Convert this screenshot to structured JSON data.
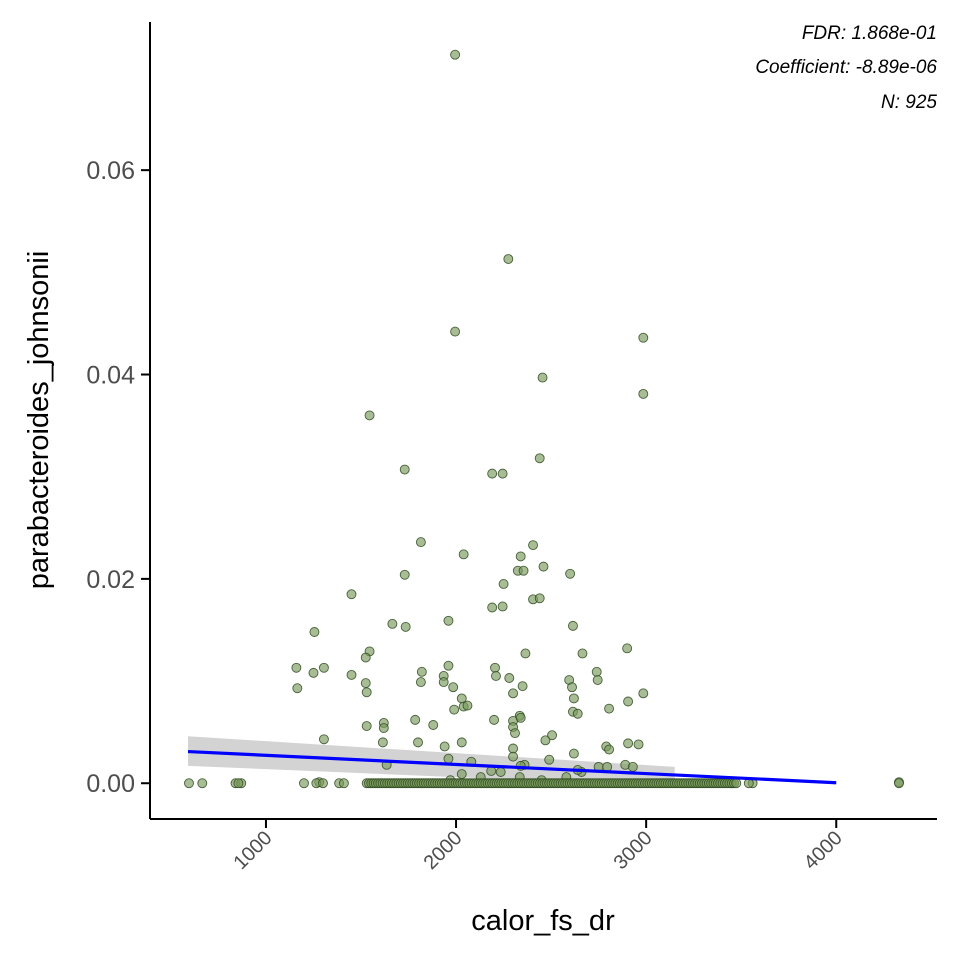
{
  "chart_data": {
    "type": "scatter",
    "title": "",
    "xlabel": "calor_fs_dr",
    "ylabel": "parabacteroides_johnsonii",
    "xlim": [
      390,
      4530
    ],
    "ylim": [
      -0.0035,
      0.0745
    ],
    "x_ticks": [
      1000,
      2000,
      3000,
      4000
    ],
    "x_tick_labels": [
      "1000",
      "2000",
      "3000",
      "4000"
    ],
    "y_ticks": [
      0.0,
      0.02,
      0.04,
      0.06
    ],
    "y_tick_labels": [
      "0.00",
      "0.02",
      "0.04",
      "0.06"
    ],
    "grid": false,
    "annotations": [
      "FDR: 1.868e-01",
      "Coefficient: -8.89e-06",
      "N: 925"
    ],
    "colors": {
      "point_fill": "#7a9a5c",
      "point_stroke": "#2e4a1e",
      "fit_line": "#0000ff",
      "confidence_band": "#c8c8c8",
      "axis": "#000000"
    },
    "fit_line": {
      "x": [
        590,
        4000
      ],
      "y": [
        0.0031,
        5e-05
      ]
    },
    "confidence_band": {
      "x": [
        590,
        3150
      ],
      "upper": [
        0.0046,
        0.0016
      ],
      "lower": [
        0.0017,
        -0.0003
      ]
    },
    "points": [
      [
        1995,
        0.0713
      ],
      [
        2275,
        0.0513
      ],
      [
        1995,
        0.0442
      ],
      [
        2985,
        0.0436
      ],
      [
        2455,
        0.0397
      ],
      [
        2985,
        0.0381
      ],
      [
        1545,
        0.036
      ],
      [
        1730,
        0.0307
      ],
      [
        2190,
        0.0303
      ],
      [
        2245,
        0.0303
      ],
      [
        2440,
        0.0318
      ],
      [
        1815,
        0.0236
      ],
      [
        2040,
        0.0224
      ],
      [
        2405,
        0.0233
      ],
      [
        2340,
        0.0222
      ],
      [
        2460,
        0.0212
      ],
      [
        2325,
        0.0208
      ],
      [
        2355,
        0.0208
      ],
      [
        2600,
        0.0205
      ],
      [
        1730,
        0.0204
      ],
      [
        2250,
        0.0195
      ],
      [
        1450,
        0.0185
      ],
      [
        2405,
        0.018
      ],
      [
        2440,
        0.0181
      ],
      [
        2190,
        0.0172
      ],
      [
        2245,
        0.0173
      ],
      [
        1960,
        0.0159
      ],
      [
        1665,
        0.0156
      ],
      [
        1735,
        0.0153
      ],
      [
        2615,
        0.0154
      ],
      [
        1255,
        0.0148
      ],
      [
        2900,
        0.0132
      ],
      [
        1545,
        0.0129
      ],
      [
        2365,
        0.0127
      ],
      [
        2665,
        0.0127
      ],
      [
        1525,
        0.0123
      ],
      [
        1160,
        0.0113
      ],
      [
        1305,
        0.0113
      ],
      [
        1960,
        0.0115
      ],
      [
        2205,
        0.0113
      ],
      [
        2740,
        0.0109
      ],
      [
        1820,
        0.0109
      ],
      [
        1250,
        0.0108
      ],
      [
        1450,
        0.0106
      ],
      [
        1935,
        0.0105
      ],
      [
        2210,
        0.0105
      ],
      [
        2280,
        0.0103
      ],
      [
        2595,
        0.0101
      ],
      [
        2745,
        0.0101
      ],
      [
        1525,
        0.0098
      ],
      [
        1815,
        0.0099
      ],
      [
        1935,
        0.0099
      ],
      [
        1165,
        0.0093
      ],
      [
        1985,
        0.0094
      ],
      [
        2350,
        0.0095
      ],
      [
        2610,
        0.0094
      ],
      [
        1530,
        0.0089
      ],
      [
        2300,
        0.0088
      ],
      [
        2985,
        0.0088
      ],
      [
        2030,
        0.0083
      ],
      [
        2620,
        0.0083
      ],
      [
        2905,
        0.008
      ],
      [
        2040,
        0.0075
      ],
      [
        2060,
        0.0076
      ],
      [
        2805,
        0.0073
      ],
      [
        1990,
        0.0072
      ],
      [
        2615,
        0.007
      ],
      [
        2640,
        0.0068
      ],
      [
        2335,
        0.0066
      ],
      [
        1785,
        0.0062
      ],
      [
        1620,
        0.0059
      ],
      [
        1620,
        0.0054
      ],
      [
        1880,
        0.0057
      ],
      [
        2200,
        0.0062
      ],
      [
        2300,
        0.0061
      ],
      [
        2340,
        0.0064
      ],
      [
        1530,
        0.0056
      ],
      [
        2300,
        0.0055
      ],
      [
        2310,
        0.0049
      ],
      [
        2505,
        0.0047
      ],
      [
        1305,
        0.0043
      ],
      [
        2470,
        0.0042
      ],
      [
        1800,
        0.004
      ],
      [
        1615,
        0.004
      ],
      [
        1940,
        0.0036
      ],
      [
        2030,
        0.004
      ],
      [
        2300,
        0.0034
      ],
      [
        2790,
        0.0036
      ],
      [
        2805,
        0.0033
      ],
      [
        2905,
        0.0039
      ],
      [
        2960,
        0.0038
      ],
      [
        2620,
        0.0029
      ],
      [
        1960,
        0.0024
      ],
      [
        2080,
        0.0021
      ],
      [
        2300,
        0.0026
      ],
      [
        2490,
        0.0023
      ],
      [
        2890,
        0.0018
      ],
      [
        1635,
        0.0018
      ],
      [
        2360,
        0.0018
      ],
      [
        2750,
        0.0016
      ],
      [
        2795,
        0.0016
      ],
      [
        2930,
        0.0016
      ],
      [
        2185,
        0.0012
      ],
      [
        2235,
        0.0011
      ],
      [
        2340,
        0.0017
      ],
      [
        2660,
        0.0011
      ],
      [
        2640,
        0.0013
      ],
      [
        2030,
        0.0009
      ],
      [
        2130,
        0.0006
      ],
      [
        2335,
        0.0006
      ],
      [
        2580,
        0.0006
      ],
      [
        1970,
        0.0003
      ],
      [
        2450,
        0.0003
      ],
      [
        1280,
        0.0001
      ],
      [
        4330,
        0.0001
      ],
      [
        595,
        0.0
      ],
      [
        665,
        0.0
      ],
      [
        840,
        0.0
      ],
      [
        870,
        0.0
      ],
      [
        855,
        0.0
      ],
      [
        1200,
        0.0
      ],
      [
        1265,
        0.0
      ],
      [
        1300,
        0.0
      ],
      [
        1385,
        0.0
      ],
      [
        1410,
        0.0
      ],
      [
        4330,
        0.0
      ],
      [
        3560,
        0.0
      ],
      [
        3540,
        0.0
      ],
      [
        3450,
        0.0
      ]
    ],
    "zero_points_range": [
      1530,
      3480
    ]
  }
}
